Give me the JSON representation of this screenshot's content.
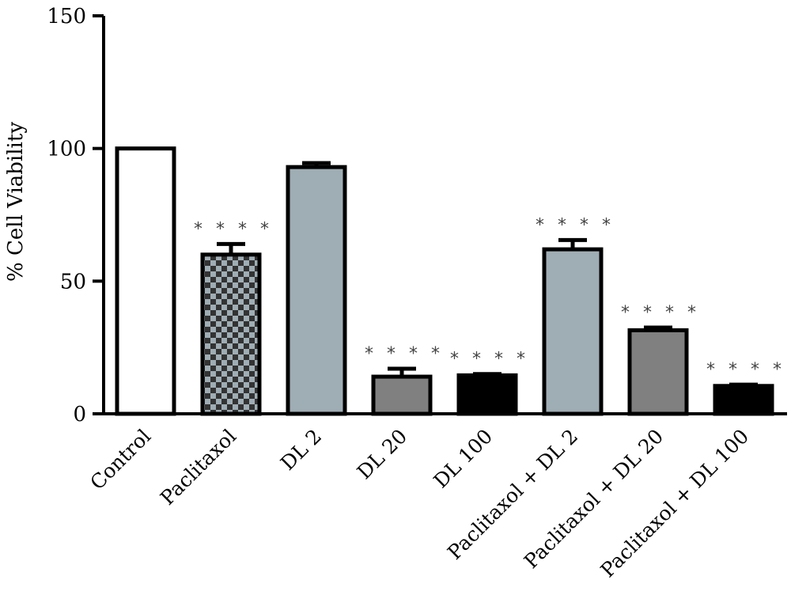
{
  "chart_data": {
    "type": "bar",
    "title": "",
    "xlabel": "",
    "ylabel": "% Cell Viability",
    "ylim": [
      0,
      150
    ],
    "yticks": [
      0,
      50,
      100,
      150
    ],
    "ytick_labels": [
      "0",
      "50",
      "100",
      "150"
    ],
    "grid": false,
    "categories": [
      "Control",
      "Paclitaxol",
      "DL 2",
      "DL 20",
      "DL 100",
      "Paclitaxol + DL 2",
      "Paclitaxol + DL 20",
      "Paclitaxol + DL 100"
    ],
    "values": [
      100,
      60,
      93,
      14,
      14.5,
      62,
      31.5,
      10.5
    ],
    "errors": [
      0,
      4,
      1.5,
      3,
      0.5,
      3.5,
      1,
      0.5
    ],
    "annotations": [
      "",
      "****",
      "",
      "****",
      "****",
      "****",
      "****",
      "****"
    ],
    "colors": {
      "Control": "#ffffff",
      "Paclitaxol": "checkered",
      "DL 2": "#9fadb4",
      "DL 20": "#808080",
      "DL 100": "#000000",
      "Paclitaxol + DL 2": "#9fadb4",
      "Paclitaxol + DL 20": "#808080",
      "Paclitaxol + DL 100": "#000000"
    },
    "outline_color": "#000000"
  }
}
